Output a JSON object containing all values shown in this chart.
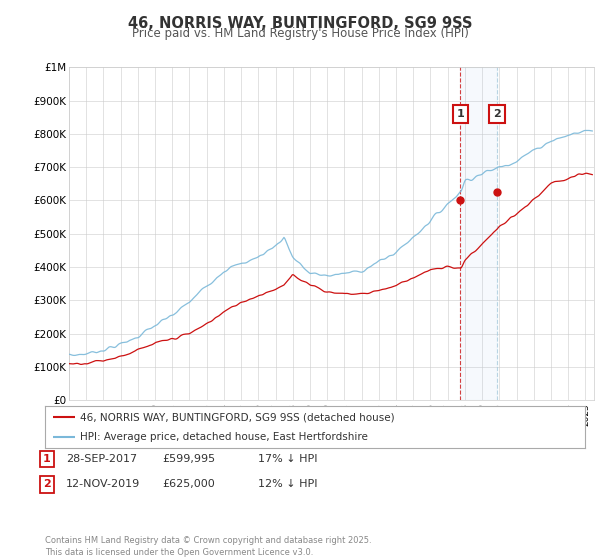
{
  "title": "46, NORRIS WAY, BUNTINGFORD, SG9 9SS",
  "subtitle": "Price paid vs. HM Land Registry's House Price Index (HPI)",
  "ylabel_ticks": [
    "£0",
    "£100K",
    "£200K",
    "£300K",
    "£400K",
    "£500K",
    "£600K",
    "£700K",
    "£800K",
    "£900K",
    "£1M"
  ],
  "ylim": [
    0,
    1000000
  ],
  "xlim_start": 1995.0,
  "xlim_end": 2025.5,
  "hpi_color": "#7ab8d9",
  "price_color": "#cc1111",
  "sale1_date": 2017.74,
  "sale1_price": 599995,
  "sale2_date": 2019.87,
  "sale2_price": 625000,
  "legend_label1": "46, NORRIS WAY, BUNTINGFORD, SG9 9SS (detached house)",
  "legend_label2": "HPI: Average price, detached house, East Hertfordshire",
  "footer": "Contains HM Land Registry data © Crown copyright and database right 2025.\nThis data is licensed under the Open Government Licence v3.0.",
  "background_color": "#ffffff",
  "grid_color": "#cccccc",
  "hpi_values": [
    135000,
    140000,
    152000,
    168000,
    192000,
    224000,
    255000,
    295000,
    345000,
    390000,
    410000,
    430000,
    465000,
    490000,
    430000,
    380000,
    375000,
    380000,
    390000,
    415000,
    445000,
    490000,
    540000,
    590000,
    630000,
    660000,
    680000,
    700000,
    720000,
    750000,
    780000,
    810000
  ],
  "price_values": [
    110000,
    113000,
    120000,
    133000,
    150000,
    170000,
    185000,
    200000,
    230000,
    265000,
    295000,
    315000,
    335000,
    345000,
    375000,
    350000,
    325000,
    320000,
    320000,
    330000,
    345000,
    370000,
    390000,
    400000,
    400000,
    420000,
    470000,
    520000,
    560000,
    600000,
    650000,
    680000
  ],
  "years": [
    1995,
    1996,
    1997,
    1998,
    1999,
    2000,
    2001,
    2002,
    2003,
    2004,
    2005,
    2006,
    2007,
    2007.5,
    2008,
    2009,
    2010,
    2011,
    2012,
    2013,
    2014,
    2015,
    2016,
    2017,
    2017.8,
    2018,
    2019,
    2020,
    2021,
    2022,
    2023,
    2025
  ]
}
